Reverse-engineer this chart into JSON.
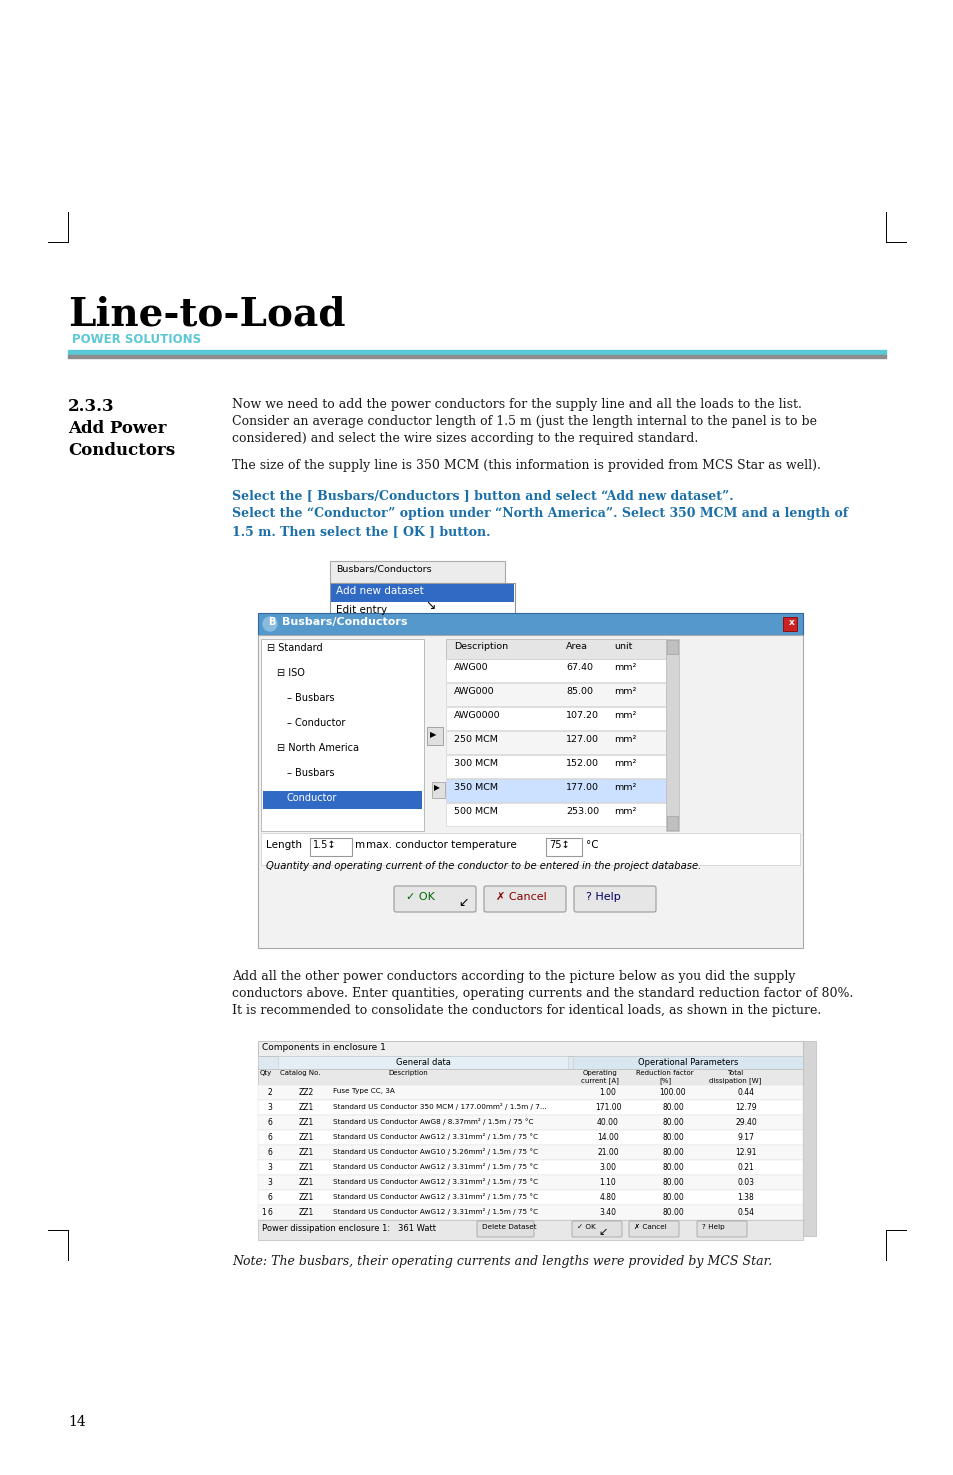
{
  "page_bg": "#ffffff",
  "header_line_color1": "#5bc8d6",
  "header_line_color2": "#8c8c8c",
  "logo_text": "Line-to-Load",
  "logo_sub": "POWER SOLUTIONS",
  "logo_text_color": "#000000",
  "logo_sub_color": "#5bc8d6",
  "section_num": "2.3.3",
  "section_title1": "Add Power",
  "section_title2": "Conductors",
  "section_title_color": "#000000",
  "body_text1_lines": [
    "Now we need to add the power conductors for the supply line and all the loads to the list.",
    "Consider an average conductor length of 1.5 m (just the length internal to the panel is to be",
    "considered) and select the wire sizes according to the required standard."
  ],
  "body_text2": "The size of the supply line is 350 MCM (this information is provided from MCS Star as well).",
  "instruction_lines": [
    "Select the [ Busbars/Conductors ] button and select “Add new dataset”.",
    "Select the “Conductor” option under “North America”. Select 350 MCM and a length of",
    "1.5 m. Then select the [ OK ] button."
  ],
  "instruction_color": "#1a6fa8",
  "body_text3_lines": [
    "Add all the other power conductors according to the picture below as you did the supply",
    "conductors above. Enter quantities, operating currents and the standard reduction factor of 80%.",
    "It is recommended to consolidate the conductors for identical loads, as shown in the picture."
  ],
  "note_text": "Note: The busbars, their operating currents and lengths were provided by MCS Star.",
  "page_num": "14",
  "body_text_color": "#1a1a1a",
  "note_color": "#1a1a1a",
  "conductor_rows": [
    [
      "AWG00",
      "67.40",
      "mm²"
    ],
    [
      "AWG000",
      "85.00",
      "mm²"
    ],
    [
      "AWG0000",
      "107.20",
      "mm²"
    ],
    [
      "250 MCM",
      "127.00",
      "mm²"
    ],
    [
      "300 MCM",
      "152.00",
      "mm²"
    ],
    [
      "350 MCM",
      "177.00",
      "mm²"
    ],
    [
      "500 MCM",
      "253.00",
      "mm²"
    ]
  ],
  "table_rows": [
    [
      "",
      "2",
      "ZZ2",
      "Fuse Type CC, 3A",
      "1.00",
      "100.00",
      "0.44"
    ],
    [
      "",
      "3",
      "ZZ1",
      "Standard US Conductor 350 MCM / 177.00mm² / 1.5m / 7...",
      "171.00",
      "80.00",
      "12.79"
    ],
    [
      "",
      "6",
      "ZZ1",
      "Standard US Conductor AwG8 / 8.37mm² / 1.5m / 75 °C",
      "40.00",
      "80.00",
      "29.40"
    ],
    [
      "",
      "6",
      "ZZ1",
      "Standard US Conductor AwG12 / 3.31mm² / 1.5m / 75 °C",
      "14.00",
      "80.00",
      "9.17"
    ],
    [
      "",
      "6",
      "ZZ1",
      "Standard US Conductor AwG10 / 5.26mm² / 1.5m / 75 °C",
      "21.00",
      "80.00",
      "12.91"
    ],
    [
      "",
      "3",
      "ZZ1",
      "Standard US Conductor AwG12 / 3.31mm² / 1.5m / 75 °C",
      "3.00",
      "80.00",
      "0.21"
    ],
    [
      "",
      "3",
      "ZZ1",
      "Standard US Conductor AwG12 / 3.31mm² / 1.5m / 75 °C",
      "1.10",
      "80.00",
      "0.03"
    ],
    [
      "",
      "6",
      "ZZ1",
      "Standard US Conductor AwG12 / 3.31mm² / 1.5m / 75 °C",
      "4.80",
      "80.00",
      "1.38"
    ],
    [
      "1",
      "6",
      "ZZ1",
      "Standard US Conductor AwG12 / 3.31mm² / 1.5m / 75 °C",
      "3.40",
      "80.00",
      "0.54"
    ]
  ]
}
